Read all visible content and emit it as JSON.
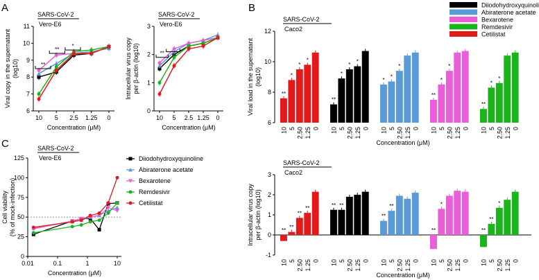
{
  "panel_letters": [
    "A",
    "B",
    "C"
  ],
  "colors": {
    "Diiodohydroxyquinoline": "#000000",
    "Abiraterone acetate": "#5B9BD5",
    "Bexarotene": "#E85FD8",
    "Remdesivir": "#1DB31D",
    "Cetilistat": "#E31A1C"
  },
  "chart_data": [
    {
      "id": "A1",
      "type": "line",
      "label": "SARS-CoV-2",
      "cell": "Vero-E6",
      "xlabel": "Concentration (μM)",
      "ylabel_line1": "Viral copy in the supernatant",
      "ylabel_line2": "(log10)",
      "categories": [
        "10",
        "5",
        "2.5",
        "1.25",
        "0"
      ],
      "ylim": [
        6,
        11
      ],
      "yticks": [
        6,
        7,
        8,
        9,
        10,
        11
      ],
      "series": [
        {
          "name": "Diiodohydroxyquinoline",
          "values": [
            8.0,
            8.3,
            9.3,
            9.4,
            9.8
          ]
        },
        {
          "name": "Abiraterone acetate",
          "values": [
            8.2,
            8.8,
            9.4,
            9.5,
            9.7
          ]
        },
        {
          "name": "Bexarotene",
          "values": [
            8.4,
            9.3,
            9.4,
            9.4,
            9.8
          ]
        },
        {
          "name": "Remdesivir",
          "values": [
            7.0,
            8.6,
            9.5,
            9.6,
            9.8
          ]
        },
        {
          "name": "Cetilistat",
          "values": [
            6.7,
            8.4,
            9.4,
            9.4,
            9.8
          ]
        }
      ],
      "brackets": [
        {
          "from": 0,
          "to": 0.6,
          "y": 8.5,
          "label": "**"
        },
        {
          "from": 0.8,
          "to": 1.4,
          "y": 9.4,
          "label": "**"
        },
        {
          "from": 1.7,
          "to": 2.3,
          "y": 9.6,
          "label": "*"
        }
      ]
    },
    {
      "id": "A2",
      "type": "line",
      "label": "SARS-CoV-2",
      "cell": "Vero-E6",
      "xlabel": "Concentration (μM)",
      "ylabel_line1": "Intracellular virus copy",
      "ylabel_line2": "per β-actin (log10)",
      "categories": [
        "10",
        "5",
        "2.5",
        "1.25",
        "0"
      ],
      "ylim": [
        0,
        3
      ],
      "yticks": [
        0,
        1,
        2,
        3
      ],
      "series": [
        {
          "name": "Diiodohydroxyquinoline",
          "values": [
            1.5,
            2.0,
            2.3,
            2.4,
            2.6
          ]
        },
        {
          "name": "Abiraterone acetate",
          "values": [
            1.6,
            2.1,
            2.4,
            2.5,
            2.7
          ]
        },
        {
          "name": "Bexarotene",
          "values": [
            1.7,
            2.2,
            2.4,
            2.5,
            2.6
          ]
        },
        {
          "name": "Remdesivir",
          "values": [
            1.0,
            1.9,
            2.3,
            2.4,
            2.6
          ]
        },
        {
          "name": "Cetilistat",
          "values": [
            0.6,
            1.6,
            2.2,
            2.3,
            2.6
          ]
        }
      ],
      "brackets": [
        {
          "from": 0,
          "to": 0.5,
          "y": 1.9,
          "label": "**"
        },
        {
          "from": 0.7,
          "to": 1.3,
          "y": 2.1,
          "label": ""
        }
      ]
    },
    {
      "id": "B1",
      "type": "bar",
      "label": "SARS-CoV-2",
      "cell": "Caco2",
      "xlabel": "Concentration (μM)",
      "ylabel_line1": "Viral load in the supernatant",
      "ylabel_line2": "(log10)",
      "ylim": [
        6,
        12
      ],
      "yticks": [
        6,
        8,
        10,
        12
      ],
      "categories": [
        "10",
        "5",
        "2.50",
        "1.25",
        "0"
      ],
      "series": [
        {
          "name": "Cetilistat",
          "values": [
            7.6,
            8.8,
            9.5,
            9.8,
            10.6
          ],
          "sig": [
            "**",
            "*",
            "*",
            "*",
            ""
          ]
        },
        {
          "name": "Diiodohydroxyquinoline",
          "values": [
            7.2,
            8.9,
            9.5,
            9.7,
            10.7
          ],
          "sig": [
            "**",
            "*",
            "*",
            "*",
            ""
          ]
        },
        {
          "name": "Abiraterone acetate",
          "values": [
            8.5,
            8.7,
            9.4,
            10.4,
            10.6
          ],
          "sig": [
            "*",
            "*",
            "*",
            "",
            ""
          ]
        },
        {
          "name": "Bexarotene",
          "values": [
            7.5,
            8.5,
            9.4,
            10.6,
            10.7
          ],
          "sig": [
            "**",
            "*",
            "*",
            "",
            ""
          ]
        },
        {
          "name": "Remdesivir",
          "values": [
            6.9,
            8.3,
            8.6,
            10.4,
            10.6
          ],
          "sig": [
            "**",
            "*",
            "*",
            "",
            ""
          ]
        }
      ]
    },
    {
      "id": "B2",
      "type": "bar",
      "label": "SARS-CoV-2",
      "cell": "Caco2",
      "xlabel": "Concentration (μM)",
      "ylabel_line1": "Intracellular virus copy",
      "ylabel_line2": "per β-actin (log10)",
      "ylim": [
        -1,
        3
      ],
      "yticks": [
        -1,
        0,
        1,
        2,
        3
      ],
      "categories": [
        "10",
        "5",
        "2.50",
        "1.25",
        "0"
      ],
      "series": [
        {
          "name": "Cetilistat",
          "values": [
            -0.3,
            0.15,
            0.85,
            1.1,
            2.15
          ],
          "sig": [
            "**",
            "**",
            "**",
            "**",
            ""
          ]
        },
        {
          "name": "Diiodohydroxyquinoline",
          "values": [
            1.25,
            1.25,
            1.9,
            2.0,
            2.15
          ],
          "sig": [
            "**",
            "**",
            "",
            "",
            ""
          ]
        },
        {
          "name": "Abiraterone acetate",
          "values": [
            0.7,
            1.2,
            1.95,
            1.8,
            2.1
          ],
          "sig": [
            "**",
            "**",
            "",
            "",
            ""
          ]
        },
        {
          "name": "Bexarotene",
          "values": [
            -0.7,
            1.3,
            1.95,
            2.2,
            2.15
          ],
          "sig": [
            "**",
            "*",
            "",
            "",
            ""
          ]
        },
        {
          "name": "Remdesivir",
          "values": [
            -0.6,
            0.55,
            1.35,
            1.75,
            2.15
          ],
          "sig": [
            "**",
            "**",
            "*",
            "",
            ""
          ]
        }
      ]
    },
    {
      "id": "C",
      "type": "scatter",
      "label": "SARS-CoV-2",
      "cell": "Vero-E6",
      "xlabel": "Concentration (μM)",
      "ylabel_line1": "Cell viability",
      "ylabel_line2": "(% of mock-infection)",
      "xscale": "log",
      "xlim": [
        0.01,
        10
      ],
      "xticks": [
        0.01,
        0.1,
        1,
        10
      ],
      "xticklabels": [
        "0.01",
        "0.1",
        "1",
        "10"
      ],
      "ylim": [
        0,
        125
      ],
      "yticks": [
        0,
        25,
        50,
        75,
        100,
        125
      ],
      "reference_line": 50,
      "x": [
        0.0156,
        0.3125,
        0.625,
        1.25,
        2.5,
        5,
        10
      ],
      "series": [
        {
          "name": "Diiodohydroxyquinoline",
          "values": [
            28,
            45,
            48,
            48,
            34,
            67,
            68
          ]
        },
        {
          "name": "Abiraterone acetate",
          "values": [
            36,
            44,
            46,
            50,
            52,
            58,
            62
          ]
        },
        {
          "name": "Bexarotene",
          "values": [
            35,
            45,
            48,
            50,
            52,
            62,
            58
          ]
        },
        {
          "name": "Remdesivir",
          "values": [
            30,
            38,
            40,
            44,
            46,
            55,
            68
          ]
        },
        {
          "name": "Cetilistat",
          "values": [
            37,
            44,
            46,
            52,
            55,
            68,
            100
          ]
        }
      ],
      "legend": [
        "Diiodohydroxyquinoline",
        "Abiraterone acetate",
        "Bexarotene",
        "Remdesivir",
        "Cetilistat"
      ]
    }
  ],
  "legend_B": [
    "Diiodohydroxyquinoline",
    "Abiraterone acetate",
    "Bexarotene",
    "Remdesivir",
    "Cetilistat"
  ]
}
